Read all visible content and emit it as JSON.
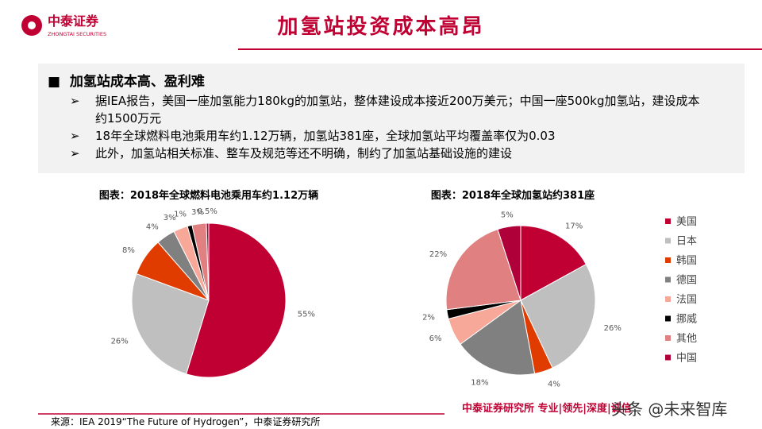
{
  "header": {
    "logo_name": "中泰证券",
    "logo_sub": "ZHONGTAI SECURITIES",
    "title": "加氢站投资成本高昂"
  },
  "summary": {
    "heading": "加氢站成本高、盈利难",
    "bullets": [
      "据IEA报告，美国一座加氢能力180kg的加氢站，整体建设成本接近200万美元；中国一座500kg加氢站，建设成本约1500万元",
      "18年全球燃料电池乘用车约1.12万辆，加氢站381座，全球加氢站平均覆盖率仅为0.03",
      "此外，加氢站相关标准、整车及规范等还不明确，制约了加氢站基础设施的建设"
    ]
  },
  "chart_data": [
    {
      "type": "pie",
      "title": "图表：2018年全球燃料电池乘用车约1.12万辆",
      "values": [
        55,
        26,
        8,
        4,
        3,
        1,
        3,
        0.5
      ],
      "value_labels": [
        "55%",
        "26%",
        "8%",
        "4%",
        "3%",
        "1%",
        "3%",
        "0.5%"
      ],
      "colors": [
        "#c00033",
        "#bfbfbf",
        "#e03c00",
        "#808080",
        "#f8a898",
        "#000000",
        "#e08080",
        "#b0003a"
      ]
    },
    {
      "type": "pie",
      "title": "图表：2018年全球加氢站约381座",
      "categories": [
        "美国",
        "日本",
        "韩国",
        "德国",
        "法国",
        "挪威",
        "其他",
        "中国"
      ],
      "values": [
        17,
        26,
        4,
        18,
        6,
        2,
        22,
        5
      ],
      "value_labels": [
        "17%",
        "26%",
        "4%",
        "18%",
        "6%",
        "2%",
        "22%",
        "5%"
      ],
      "colors": [
        "#c00033",
        "#bfbfbf",
        "#e03c00",
        "#808080",
        "#f8a898",
        "#000000",
        "#e08080",
        "#b0003a"
      ],
      "legend": "right"
    }
  ],
  "footer": {
    "source": "来源：IEA 2019“The Future of Hydrogen”，中泰证券研究所",
    "brand": "中泰证券研究所 专业|领先|深度|诚信",
    "watermark": "头条 @未来智库"
  }
}
